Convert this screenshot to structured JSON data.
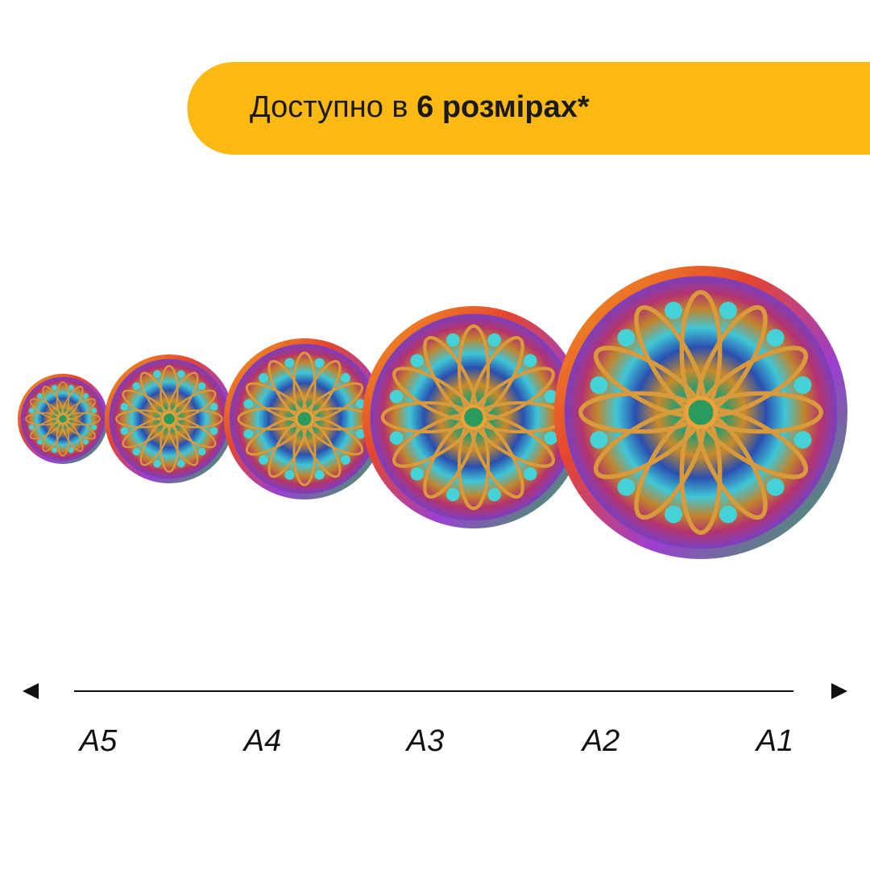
{
  "banner": {
    "text_regular": "Доступно в",
    "text_bold": "6 розмірах*"
  },
  "sizes": [
    "A5",
    "A4",
    "A3",
    "A2",
    "A1"
  ]
}
